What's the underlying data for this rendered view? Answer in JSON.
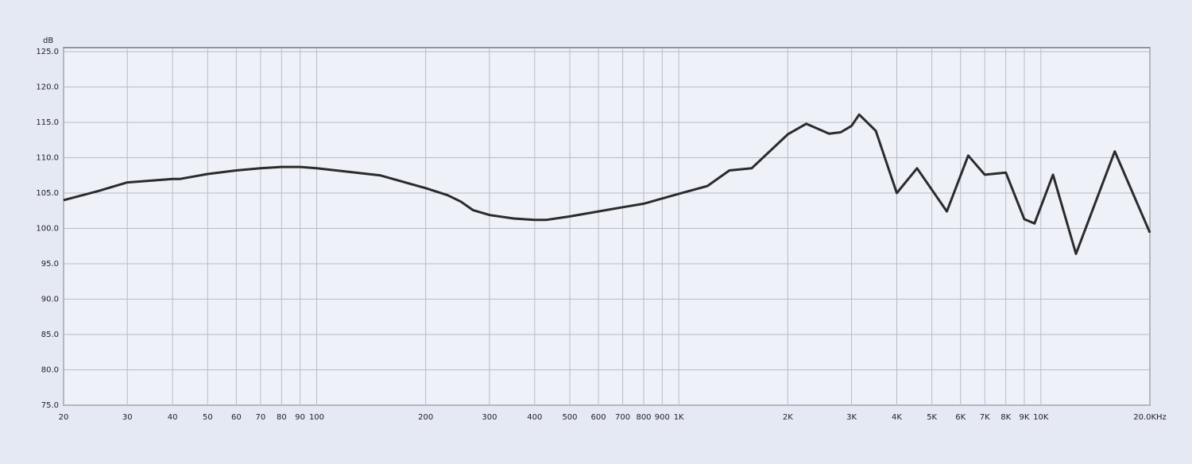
{
  "chart_data": {
    "type": "line",
    "y_label": "dB",
    "x_scale": "log",
    "grid": true,
    "xlim": [
      20,
      20000
    ],
    "ylim": [
      75,
      125
    ],
    "xticks": [
      20,
      30,
      40,
      50,
      60,
      70,
      80,
      90,
      100,
      200,
      300,
      400,
      500,
      600,
      700,
      800,
      900,
      {
        "value": 1000,
        "label": "1K"
      },
      {
        "value": 2000,
        "label": "2K"
      },
      {
        "value": 3000,
        "label": "3K"
      },
      {
        "value": 4000,
        "label": "4K"
      },
      {
        "value": 5000,
        "label": "5K"
      },
      {
        "value": 6000,
        "label": "6K"
      },
      {
        "value": 7000,
        "label": "7K"
      },
      {
        "value": 8000,
        "label": "8K"
      },
      {
        "value": 9000,
        "label": "9K"
      },
      {
        "value": 10000,
        "label": "10K"
      },
      {
        "value": 20000,
        "label": "20.0KHz"
      }
    ],
    "yticks": [
      {
        "value": 75,
        "label": "75.0"
      },
      {
        "value": 80,
        "label": "80.0"
      },
      {
        "value": 85,
        "label": "85.0"
      },
      {
        "value": 90,
        "label": "90.0"
      },
      {
        "value": 95,
        "label": "95.0"
      },
      {
        "value": 100,
        "label": "100.0"
      },
      {
        "value": 105,
        "label": "105.0"
      },
      {
        "value": 110,
        "label": "110.0"
      },
      {
        "value": 115,
        "label": "115.0"
      },
      {
        "value": 120,
        "label": "120.0"
      },
      {
        "value": 125,
        "label": "125.0"
      }
    ],
    "series": [
      {
        "color": "#2b2b2b",
        "x": [
          20,
          25,
          30,
          40,
          42,
          50,
          60,
          70,
          80,
          90,
          100,
          150,
          200,
          230,
          250,
          270,
          300,
          350,
          400,
          430,
          500,
          600,
          700,
          800,
          1000,
          1200,
          1380,
          1590,
          2000,
          2250,
          2600,
          2800,
          3000,
          3150,
          3500,
          4000,
          4550,
          5500,
          6300,
          7000,
          8000,
          9000,
          9600,
          10800,
          12500,
          16000,
          20000
        ],
        "values": [
          104,
          105.3,
          106.5,
          107,
          107,
          107.7,
          108.2,
          108.5,
          108.7,
          108.7,
          108.5,
          107.5,
          105.7,
          104.7,
          103.8,
          102.6,
          101.9,
          101.4,
          101.2,
          101.2,
          101.7,
          102.4,
          103,
          103.5,
          104.9,
          106,
          108.2,
          108.5,
          113.3,
          114.8,
          113.4,
          113.6,
          114.5,
          116.1,
          113.8,
          105,
          108.5,
          102.4,
          110.3,
          107.6,
          107.9,
          101.3,
          100.7,
          107.6,
          96.4,
          110.9,
          99.4
        ]
      }
    ]
  }
}
